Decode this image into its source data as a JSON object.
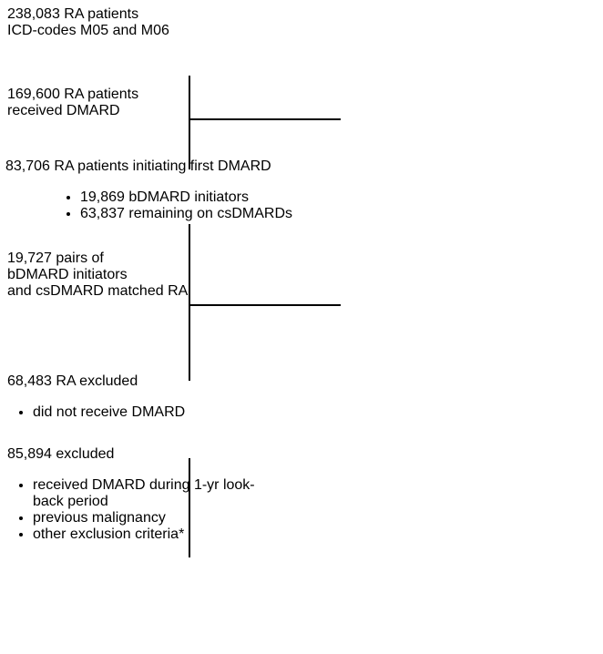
{
  "nodes": [
    {
      "lines": [
        "238,083 RA patients",
        "ICD-codes M05 and M06"
      ]
    },
    {
      "lines": [
        "169,600 RA patients",
        "received DMARD"
      ]
    },
    {
      "lines": [
        "83,706 RA patients initiating first DMARD"
      ],
      "items": [
        "19,869 bDMARD initiators",
        "63,837 remaining on csDMARDs"
      ]
    },
    {
      "lines": [
        "19,727 pairs of",
        "bDMARD initiators",
        "and csDMARD matched RA"
      ]
    }
  ],
  "exclusions": [
    {
      "lines": [
        "68,483 RA excluded"
      ],
      "items": [
        "did not receive DMARD"
      ]
    },
    {
      "lines": [
        "85,894 excluded"
      ],
      "items": [
        "received DMARD during 1-yr look-back period",
        "previous malignancy",
        "other exclusion criteria*"
      ]
    }
  ]
}
